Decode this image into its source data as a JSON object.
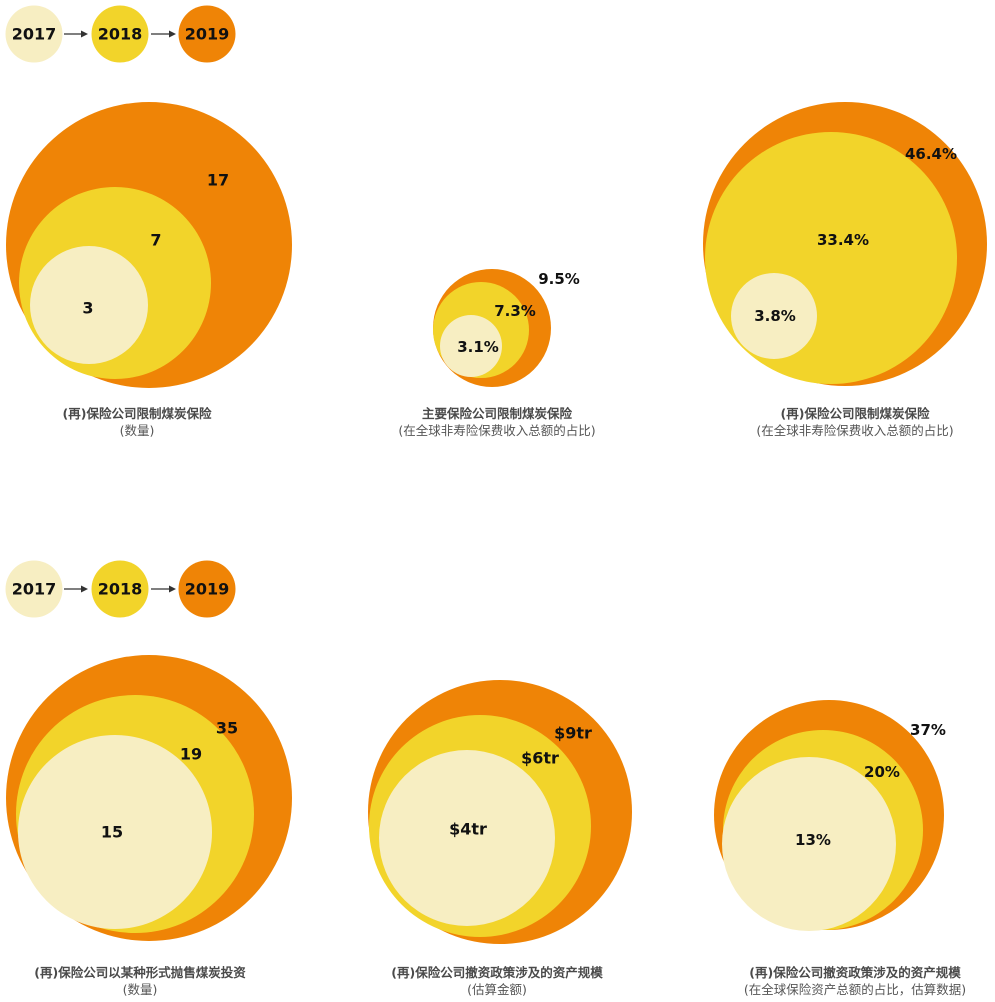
{
  "colors": {
    "2017": "#f7eec2",
    "2018": "#f2d42a",
    "2019": "#ef8406",
    "text": "#111111",
    "caption": "#555555",
    "arrow": "#333333"
  },
  "legend": {
    "labels": [
      "2017",
      "2018",
      "2019"
    ]
  },
  "captions": [
    {
      "title": "(再)保险公司限制煤炭保险",
      "sub": "(数量)"
    },
    {
      "title": "主要保险公司限制煤炭保险",
      "sub": "(在全球非寿险保费收入总额的占比)"
    },
    {
      "title": "(再)保险公司限制煤炭保险",
      "sub": "(在全球非寿险保费收入总额的占比)"
    },
    {
      "title": "(再)保险公司以某种形式抛售煤炭投资",
      "sub": "(数量)"
    },
    {
      "title": "(再)保险公司撤资政策涉及的资产规模",
      "sub": "(估算金额)"
    },
    {
      "title": "(再)保险公司撤资政策涉及的资产规模",
      "sub": "(在全球保险资产总额的占比，估算数据)"
    }
  ],
  "chart_data": [
    {
      "type": "nested-bubble",
      "categories": [
        "2017",
        "2018",
        "2019"
      ],
      "values": [
        3,
        7,
        17
      ],
      "labels": [
        "3",
        "7",
        "17"
      ]
    },
    {
      "type": "nested-bubble",
      "categories": [
        "2017",
        "2018",
        "2019"
      ],
      "values": [
        3.1,
        7.3,
        9.5
      ],
      "labels": [
        "3.1%",
        "7.3%",
        "9.5%"
      ]
    },
    {
      "type": "nested-bubble",
      "categories": [
        "2017",
        "2018",
        "2019"
      ],
      "values": [
        3.8,
        33.4,
        46.4
      ],
      "labels": [
        "3.8%",
        "33.4%",
        "46.4%"
      ]
    },
    {
      "type": "nested-bubble",
      "categories": [
        "2017",
        "2018",
        "2019"
      ],
      "values": [
        15,
        19,
        35
      ],
      "labels": [
        "15",
        "19",
        "35"
      ]
    },
    {
      "type": "nested-bubble",
      "categories": [
        "2017",
        "2018",
        "2019"
      ],
      "values": [
        4,
        6,
        9
      ],
      "labels": [
        "$4tr",
        "$6tr",
        "$9tr"
      ]
    },
    {
      "type": "nested-bubble",
      "categories": [
        "2017",
        "2018",
        "2019"
      ],
      "values": [
        13,
        20,
        37
      ],
      "labels": [
        "13%",
        "20%",
        "37%"
      ]
    }
  ]
}
